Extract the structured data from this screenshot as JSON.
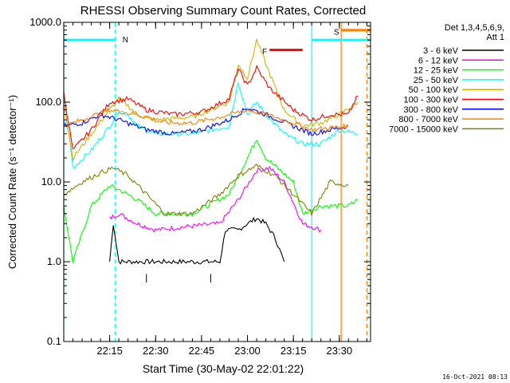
{
  "chart_data": {
    "type": "line",
    "title": "RHESSI Observing Summary Count Rates, Corrected",
    "xlabel": "Start Time (30-May-02 22:01:22)",
    "ylabel": "Corrected Count Rate (s⁻¹ detector⁻¹)",
    "footer": "16-Oct-2021 08:13",
    "legend_header": [
      "Det 1,3,4,5,6,9,",
      "Att 1"
    ],
    "y_scale": "log",
    "ylim": [
      0.1,
      1000
    ],
    "y_ticks": [
      {
        "v": 0.1,
        "label": "0.1"
      },
      {
        "v": 1,
        "label": "1.0"
      },
      {
        "v": 10,
        "label": "10.0"
      },
      {
        "v": 100,
        "label": "100.0"
      },
      {
        "v": 1000,
        "label": "1000.0"
      }
    ],
    "xlim": [
      22.0,
      23.67
    ],
    "x_ticks": [
      {
        "v": 22.25,
        "label": "22:15"
      },
      {
        "v": 22.5,
        "label": "22:30"
      },
      {
        "v": 22.75,
        "label": "22:45"
      },
      {
        "v": 23.0,
        "label": "23:00"
      },
      {
        "v": 23.25,
        "label": "23:15"
      },
      {
        "v": 23.5,
        "label": "23:30"
      }
    ],
    "x_minor_step": 0.05,
    "series": [
      {
        "name": "3 - 6 keV",
        "color": "#000000",
        "values": [
          [
            22.25,
            1.0
          ],
          [
            22.27,
            3.0
          ],
          [
            22.3,
            1.0
          ],
          [
            22.85,
            1.0
          ],
          [
            22.88,
            2.5
          ],
          [
            22.95,
            2.5
          ],
          [
            23.0,
            3.0
          ],
          [
            23.05,
            3.5
          ],
          [
            23.1,
            3.0
          ],
          [
            23.15,
            2.0
          ],
          [
            23.2,
            1.0
          ]
        ]
      },
      {
        "name": "6 - 12 keV",
        "color": "#ff00ff",
        "values": [
          [
            22.25,
            3.5
          ],
          [
            22.3,
            4.0
          ],
          [
            22.4,
            3.0
          ],
          [
            22.5,
            2.5
          ],
          [
            22.7,
            2.8
          ],
          [
            22.85,
            3.0
          ],
          [
            22.95,
            6.0
          ],
          [
            23.05,
            14.0
          ],
          [
            23.12,
            15.0
          ],
          [
            23.2,
            10.0
          ],
          [
            23.3,
            3.0
          ],
          [
            23.4,
            2.5
          ]
        ]
      },
      {
        "name": "12 - 25 keV",
        "color": "#00ff00",
        "values": [
          [
            22.0,
            5.0
          ],
          [
            22.05,
            1.0
          ],
          [
            22.15,
            5.0
          ],
          [
            22.25,
            9.0
          ],
          [
            22.3,
            8.0
          ],
          [
            22.4,
            6.0
          ],
          [
            22.5,
            4.0
          ],
          [
            22.7,
            4.0
          ],
          [
            22.9,
            7.0
          ],
          [
            23.0,
            20.0
          ],
          [
            23.05,
            35.0
          ],
          [
            23.1,
            20.0
          ],
          [
            23.25,
            10.0
          ],
          [
            23.3,
            4.0
          ],
          [
            23.4,
            5.0
          ],
          [
            23.55,
            5.0
          ],
          [
            23.6,
            6.0
          ]
        ]
      },
      {
        "name": "25 - 50 keV",
        "color": "#00ffff",
        "values": [
          [
            22.0,
            60.0
          ],
          [
            22.03,
            40.0
          ],
          [
            22.05,
            15.0
          ],
          [
            22.15,
            25.0
          ],
          [
            22.25,
            50.0
          ],
          [
            22.3,
            80.0
          ],
          [
            22.35,
            70.0
          ],
          [
            22.4,
            50.0
          ],
          [
            22.5,
            40.0
          ],
          [
            22.7,
            40.0
          ],
          [
            22.9,
            50.0
          ],
          [
            22.95,
            180.0
          ],
          [
            23.0,
            70.0
          ],
          [
            23.05,
            100.0
          ],
          [
            23.1,
            70.0
          ],
          [
            23.2,
            40.0
          ],
          [
            23.3,
            30.0
          ],
          [
            23.4,
            30.0
          ],
          [
            23.5,
            45.0
          ],
          [
            23.6,
            40.0
          ]
        ]
      },
      {
        "name": "50 - 100 keV",
        "color": "#d2b400",
        "values": [
          [
            22.0,
            100.0
          ],
          [
            22.05,
            20.0
          ],
          [
            22.15,
            40.0
          ],
          [
            22.25,
            80.0
          ],
          [
            22.3,
            110.0
          ],
          [
            22.35,
            90.0
          ],
          [
            22.4,
            70.0
          ],
          [
            22.5,
            60.0
          ],
          [
            22.7,
            65.0
          ],
          [
            22.9,
            100.0
          ],
          [
            22.95,
            300.0
          ],
          [
            23.0,
            200.0
          ],
          [
            23.05,
            600.0
          ],
          [
            23.1,
            300.0
          ],
          [
            23.2,
            80.0
          ],
          [
            23.3,
            50.0
          ],
          [
            23.4,
            55.0
          ],
          [
            23.5,
            70.0
          ],
          [
            23.6,
            100.0
          ]
        ]
      },
      {
        "name": "100 - 300 keV",
        "color": "#ff0000",
        "values": [
          [
            22.0,
            130.0
          ],
          [
            22.05,
            25.0
          ],
          [
            22.15,
            45.0
          ],
          [
            22.25,
            100.0
          ],
          [
            22.35,
            110.0
          ],
          [
            22.45,
            80.0
          ],
          [
            22.6,
            70.0
          ],
          [
            22.75,
            75.0
          ],
          [
            22.9,
            110.0
          ],
          [
            22.95,
            260.0
          ],
          [
            23.0,
            160.0
          ],
          [
            23.05,
            270.0
          ],
          [
            23.12,
            150.0
          ],
          [
            23.25,
            80.0
          ],
          [
            23.35,
            60.0
          ],
          [
            23.45,
            70.0
          ],
          [
            23.55,
            70.0
          ],
          [
            23.6,
            120.0
          ]
        ]
      },
      {
        "name": "300 - 800 keV",
        "color": "#0000ff",
        "values": [
          [
            22.0,
            50.0
          ],
          [
            22.1,
            55.0
          ],
          [
            22.2,
            70.0
          ],
          [
            22.3,
            60.0
          ],
          [
            22.45,
            45.0
          ],
          [
            22.6,
            40.0
          ],
          [
            22.75,
            45.0
          ],
          [
            22.9,
            60.0
          ],
          [
            23.0,
            85.0
          ],
          [
            23.1,
            70.0
          ],
          [
            23.25,
            50.0
          ],
          [
            23.35,
            40.0
          ],
          [
            23.45,
            45.0
          ],
          [
            23.55,
            50.0
          ]
        ]
      },
      {
        "name": "800 - 7000 keV",
        "color": "#ff8000",
        "values": [
          [
            22.0,
            50.0
          ],
          [
            22.1,
            60.0
          ],
          [
            22.25,
            80.0
          ],
          [
            22.4,
            70.0
          ],
          [
            22.55,
            55.0
          ],
          [
            22.7,
            55.0
          ],
          [
            22.85,
            65.0
          ],
          [
            23.0,
            80.0
          ],
          [
            23.1,
            70.0
          ],
          [
            23.25,
            55.0
          ],
          [
            23.35,
            45.0
          ],
          [
            23.45,
            48.0
          ],
          [
            23.55,
            50.0
          ]
        ]
      },
      {
        "name": "7000 - 15000 keV",
        "color": "#808000",
        "values": [
          [
            22.0,
            7.0
          ],
          [
            22.1,
            10.0
          ],
          [
            22.2,
            13.0
          ],
          [
            22.27,
            15.0
          ],
          [
            22.35,
            12.0
          ],
          [
            22.45,
            7.0
          ],
          [
            22.55,
            4.0
          ],
          [
            22.7,
            4.0
          ],
          [
            22.85,
            7.0
          ],
          [
            22.95,
            12.0
          ],
          [
            23.05,
            16.0
          ],
          [
            23.15,
            12.0
          ],
          [
            23.25,
            7.0
          ],
          [
            23.35,
            4.0
          ],
          [
            23.45,
            10.0
          ],
          [
            23.55,
            9.0
          ]
        ]
      }
    ],
    "flag_lines": [
      {
        "x": 22.0,
        "color": "#00ffff",
        "style": "solid"
      },
      {
        "x": 22.28,
        "color": "#00ffff",
        "style": "dashed"
      },
      {
        "x": 23.35,
        "color": "#00ffff",
        "style": "solid"
      },
      {
        "x": 23.51,
        "color": "#ff8000",
        "style": "solid"
      },
      {
        "x": 23.65,
        "color": "#ff8000",
        "style": "dashed"
      }
    ],
    "flag_bars": [
      {
        "label": "N",
        "color": "#00ffff",
        "x0": 22.0,
        "x1": 22.28,
        "y": 600
      },
      {
        "label": "N",
        "color": "#00ffff",
        "x0": 23.35,
        "x1": 23.67,
        "y": 600
      },
      {
        "label": "F",
        "color": "#ff0000",
        "x0": 23.12,
        "x1": 23.3,
        "y": 450
      },
      {
        "label": "S",
        "color": "#ff8000",
        "x0": 23.51,
        "x1": 23.67,
        "y": 800
      }
    ],
    "tick_marks": [
      22.45,
      22.8
    ],
    "annotations": [
      {
        "text": "N",
        "color": "#00ffff",
        "x": 22.32,
        "y": 560
      },
      {
        "text": "F",
        "color": "#ff0000",
        "x": 23.08,
        "y": 400
      },
      {
        "text": "S",
        "color": "#ff8000",
        "x": 23.47,
        "y": 700
      }
    ]
  }
}
